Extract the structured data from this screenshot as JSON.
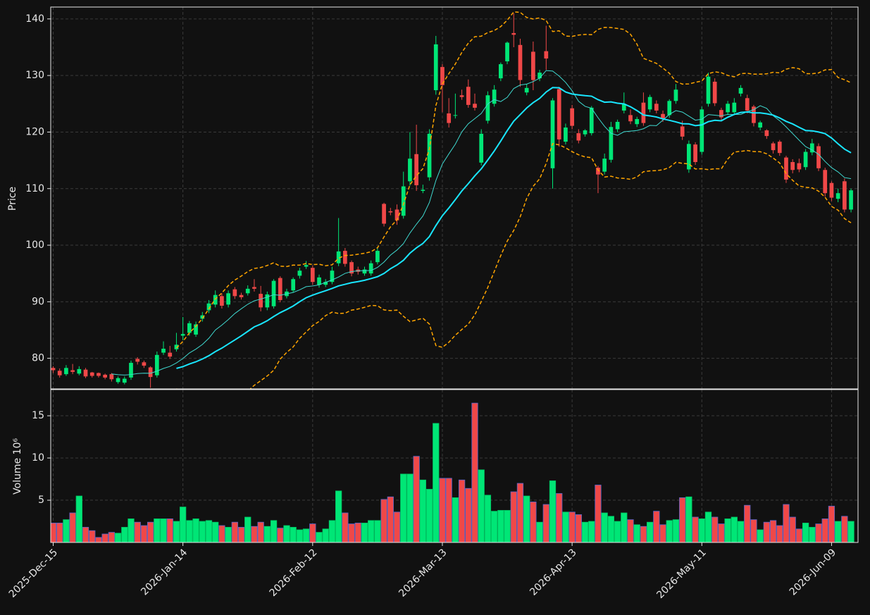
{
  "chart_data": {
    "type": "candlestick",
    "categories": [
      "2025-Dec-15",
      null,
      null,
      null,
      null,
      null,
      null,
      null,
      null,
      null,
      null,
      null,
      null,
      null,
      null,
      null,
      null,
      null,
      null,
      null,
      "2026-Jan-14",
      null,
      null,
      null,
      null,
      null,
      null,
      null,
      null,
      null,
      null,
      null,
      null,
      null,
      null,
      null,
      null,
      null,
      null,
      null,
      "2026-Feb-12",
      null,
      null,
      null,
      null,
      null,
      null,
      null,
      null,
      null,
      null,
      null,
      null,
      null,
      null,
      null,
      null,
      null,
      null,
      null,
      "2026-Mar-13",
      null,
      null,
      null,
      null,
      null,
      null,
      null,
      null,
      null,
      null,
      null,
      null,
      null,
      null,
      null,
      null,
      null,
      null,
      null,
      "2026-Apr-13",
      null,
      null,
      null,
      null,
      null,
      null,
      null,
      null,
      null,
      null,
      null,
      null,
      null,
      null,
      null,
      null,
      null,
      null,
      null,
      "2026-May-11",
      null,
      null,
      null,
      null,
      null,
      null,
      null,
      null,
      null,
      null,
      null,
      null,
      null,
      null,
      null,
      null,
      null,
      null,
      null,
      "2026-Jun-09",
      null,
      null,
      null
    ],
    "open": [
      78.3,
      77.8,
      77.2,
      77.9,
      77.3,
      78.0,
      77.5,
      77.4,
      77.1,
      77.2,
      75.8,
      75.7,
      76.6,
      79.9,
      79.3,
      78.4,
      77.0,
      81.0,
      81.0,
      81.6,
      84.0,
      84.5,
      84.2,
      87.0,
      88.5,
      89.5,
      91.0,
      89.5,
      92.2,
      91.2,
      91.5,
      92.6,
      91.4,
      89.0,
      89.2,
      94.2,
      91.0,
      92.0,
      94.6,
      96.2,
      96.0,
      93.0,
      93.0,
      93.5,
      96.8,
      99.0,
      97.0,
      95.7,
      95.0,
      95.0,
      97.0,
      107.3,
      106.0,
      106.3,
      105.2,
      111.3,
      116.1,
      109.6,
      112.0,
      127.4,
      131.5,
      123.3,
      122.9,
      126.5,
      128.0,
      125.0,
      114.6,
      122.0,
      125.0,
      129.5,
      132.5,
      137.5,
      135.4,
      127.0,
      134.2,
      129.5,
      134.3,
      113.6,
      127.6,
      118.3,
      124.2,
      119.8,
      119.6,
      119.8,
      113.7,
      113.0,
      115.1,
      120.5,
      123.8,
      123.0,
      121.4,
      125.2,
      124.0,
      125.0,
      123.2,
      123.0,
      125.5,
      121.0,
      113.4,
      117.8,
      116.5,
      125.0,
      128.9,
      123.9,
      123.5,
      123.5,
      126.8,
      126.0,
      124.5,
      120.8,
      120.3,
      118.0,
      118.3,
      115.5,
      114.7,
      114.5,
      113.8,
      116.4,
      117.5,
      113.3,
      111.0,
      108.2,
      111.3,
      106.3
    ],
    "high": [
      78.6,
      78.2,
      78.8,
      79.0,
      78.6,
      78.3,
      77.6,
      77.5,
      77.3,
      77.4,
      76.8,
      76.8,
      79.6,
      80.2,
      79.6,
      78.6,
      81.2,
      83.0,
      82.2,
      84.5,
      87.3,
      86.6,
      86.5,
      88.2,
      90.3,
      92.0,
      91.5,
      92.0,
      92.6,
      91.6,
      92.9,
      94.0,
      92.8,
      91.8,
      94.0,
      94.5,
      92.3,
      94.3,
      96.0,
      97.2,
      96.4,
      94.8,
      94.0,
      96.2,
      104.8,
      99.5,
      97.3,
      96.2,
      96.2,
      97.3,
      99.6,
      107.5,
      106.6,
      107.2,
      113.0,
      120.0,
      121.3,
      110.7,
      120.5,
      137.0,
      132.0,
      126.0,
      126.8,
      127.5,
      129.3,
      126.8,
      120.5,
      127.2,
      128.3,
      132.3,
      136.0,
      141.0,
      136.5,
      128.5,
      136.0,
      131.0,
      138.8,
      126.0,
      128.0,
      121.5,
      124.8,
      120.5,
      120.5,
      124.6,
      114.0,
      116.2,
      121.8,
      122.2,
      127.0,
      124.0,
      122.7,
      127.0,
      126.6,
      125.6,
      123.8,
      125.8,
      128.5,
      122.0,
      118.5,
      118.2,
      124.5,
      130.5,
      129.5,
      124.3,
      125.5,
      126.0,
      128.3,
      126.6,
      124.8,
      122.0,
      120.5,
      118.3,
      118.6,
      115.8,
      115.2,
      115.3,
      117.0,
      118.8,
      118.0,
      113.7,
      111.3,
      110.0,
      111.8,
      110.0
    ],
    "low": [
      77.4,
      76.6,
      76.9,
      77.2,
      77.0,
      76.5,
      76.6,
      76.6,
      76.3,
      75.9,
      75.5,
      75.4,
      76.2,
      78.9,
      78.3,
      74.8,
      76.6,
      80.6,
      79.9,
      81.2,
      83.2,
      84.0,
      83.8,
      86.5,
      88.0,
      89.0,
      88.8,
      89.0,
      90.5,
      90.4,
      91.1,
      91.8,
      88.3,
      88.5,
      88.8,
      89.9,
      90.6,
      91.6,
      94.1,
      95.8,
      93.0,
      92.5,
      92.6,
      93.1,
      96.3,
      96.2,
      94.5,
      94.8,
      94.6,
      94.6,
      96.6,
      103.3,
      105.3,
      103.6,
      104.7,
      110.5,
      109.6,
      109.2,
      111.4,
      126.6,
      123.5,
      120.8,
      122.4,
      125.7,
      124.3,
      123.8,
      114.1,
      121.5,
      124.5,
      129.0,
      132.0,
      135.0,
      128.0,
      126.5,
      127.4,
      129.0,
      131.0,
      110.0,
      117.4,
      117.8,
      120.5,
      118.0,
      119.2,
      119.4,
      109.2,
      112.5,
      114.6,
      120.0,
      123.3,
      121.4,
      120.9,
      121.1,
      123.5,
      123.3,
      121.8,
      122.5,
      125.0,
      118.6,
      112.8,
      114.2,
      116.0,
      124.5,
      124.6,
      122.1,
      123.0,
      123.0,
      126.3,
      123.3,
      121.0,
      120.3,
      118.8,
      116.2,
      115.8,
      111.0,
      112.7,
      112.9,
      113.3,
      115.9,
      113.1,
      108.6,
      107.8,
      107.6,
      105.8,
      105.8
    ],
    "close": [
      77.9,
      77.0,
      78.3,
      77.6,
      78.1,
      76.8,
      76.9,
      76.9,
      76.6,
      76.3,
      76.5,
      76.4,
      79.2,
      79.4,
      78.7,
      76.7,
      80.6,
      81.7,
      80.3,
      82.4,
      84.3,
      86.2,
      86.0,
      87.6,
      89.7,
      91.2,
      89.3,
      91.5,
      91.0,
      90.8,
      92.3,
      92.3,
      89.0,
      91.3,
      93.7,
      90.3,
      91.8,
      94.0,
      95.5,
      96.5,
      93.5,
      94.3,
      93.5,
      95.5,
      98.9,
      96.7,
      95.0,
      95.3,
      95.7,
      96.8,
      99.0,
      103.8,
      105.8,
      104.4,
      110.4,
      115.3,
      110.6,
      109.8,
      119.7,
      135.5,
      128.3,
      121.6,
      123.0,
      126.2,
      124.8,
      124.3,
      119.7,
      126.5,
      127.5,
      132.0,
      135.8,
      137.2,
      129.2,
      127.8,
      129.2,
      130.5,
      133.0,
      125.6,
      118.7,
      120.8,
      121.1,
      118.5,
      120.3,
      124.3,
      112.5,
      115.3,
      120.9,
      121.8,
      125.0,
      121.9,
      122.3,
      121.6,
      126.2,
      123.8,
      122.3,
      125.5,
      127.5,
      119.2,
      117.9,
      114.7,
      124.0,
      129.8,
      125.1,
      122.6,
      125.0,
      125.2,
      127.8,
      123.8,
      121.6,
      121.7,
      119.3,
      116.8,
      116.3,
      111.6,
      113.3,
      113.4,
      116.5,
      118.0,
      113.6,
      109.2,
      108.4,
      109.2,
      106.3,
      109.7
    ],
    "volume": [
      2.3,
      2.3,
      2.7,
      3.5,
      5.5,
      1.8,
      1.4,
      0.6,
      1.0,
      1.2,
      1.1,
      1.8,
      2.8,
      2.4,
      2.0,
      2.4,
      2.8,
      2.8,
      2.8,
      2.5,
      4.2,
      2.6,
      2.8,
      2.5,
      2.6,
      2.4,
      2.0,
      1.8,
      2.4,
      1.8,
      3.0,
      1.9,
      2.4,
      1.9,
      2.6,
      1.7,
      2.0,
      1.8,
      1.5,
      1.6,
      2.2,
      1.2,
      1.6,
      2.6,
      6.1,
      3.5,
      2.2,
      2.3,
      2.3,
      2.6,
      2.6,
      5.1,
      5.4,
      3.6,
      8.1,
      8.1,
      10.2,
      7.4,
      6.3,
      14.1,
      7.6,
      7.6,
      5.3,
      7.4,
      6.4,
      16.5,
      8.6,
      5.6,
      3.7,
      3.8,
      3.8,
      6.0,
      7.0,
      5.5,
      4.8,
      2.4,
      4.5,
      7.3,
      5.8,
      3.6,
      3.6,
      3.3,
      2.4,
      2.5,
      6.8,
      3.5,
      3.1,
      2.5,
      3.5,
      2.7,
      2.1,
      1.9,
      2.4,
      3.7,
      2.1,
      2.6,
      2.7,
      5.3,
      5.4,
      3.0,
      2.8,
      3.6,
      3.0,
      2.2,
      2.8,
      3.0,
      2.5,
      4.4,
      2.7,
      1.5,
      2.4,
      2.6,
      2.0,
      4.5,
      3.0,
      1.6,
      2.3,
      1.8,
      2.2,
      2.8,
      4.3,
      2.5,
      3.1,
      2.5
    ],
    "up_color": "#00e676",
    "down_color": "#f04848",
    "ylabel": "Price",
    "ylim": [
      74.6,
      142.1
    ],
    "yticks": [
      80,
      90,
      100,
      110,
      120,
      130,
      140
    ],
    "volume_label": "Volume  10⁶",
    "volume_ylim": [
      0,
      18.1
    ],
    "volume_yticks": [
      5,
      10,
      15
    ],
    "mav": [
      {
        "window": 10,
        "color": "#3fd9d0",
        "width": 1
      },
      {
        "window": 20,
        "color": "#19e6ff",
        "width": 2
      }
    ],
    "bollinger": {
      "window": 20,
      "k": 2,
      "color": "#ffa500"
    },
    "grid": true
  }
}
